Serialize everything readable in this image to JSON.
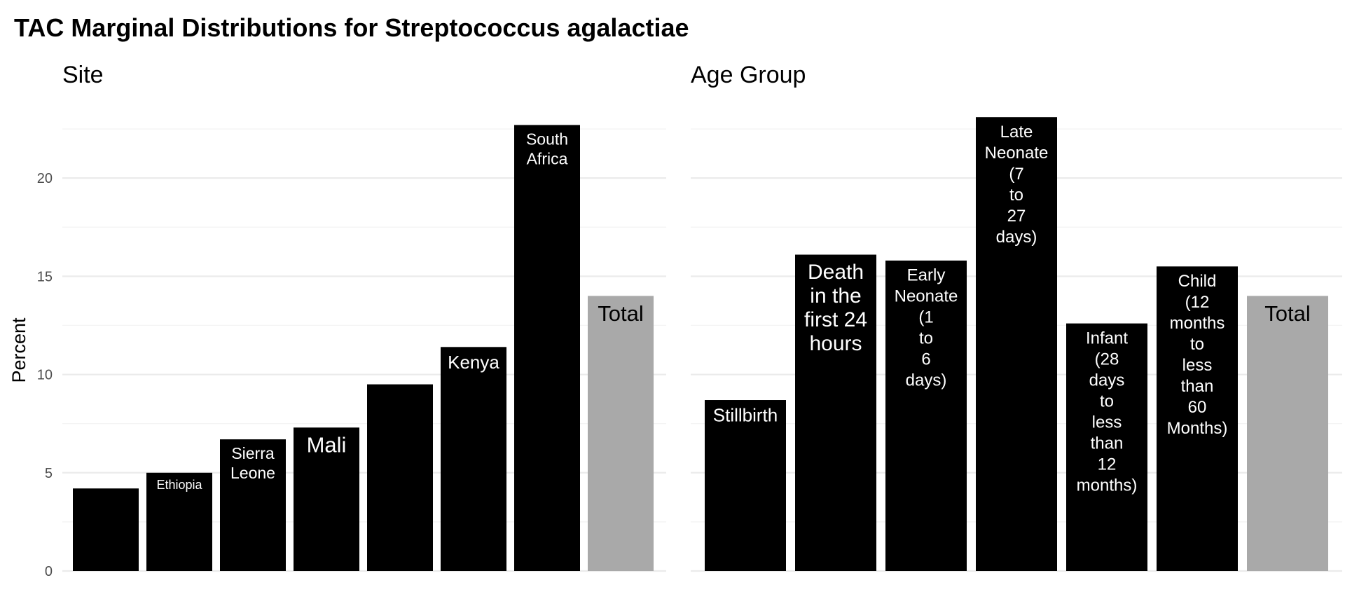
{
  "title": "TAC Marginal Distributions for Streptococcus agalactiae",
  "y_axis_label": "Percent",
  "colors": {
    "bar": "#000000",
    "total_bar": "#a9a9a9",
    "bar_text": "#ffffff",
    "total_text": "#000000"
  },
  "chart_data": [
    {
      "type": "bar",
      "title": "Site",
      "ylabel": "Percent",
      "ylim": [
        0,
        23
      ],
      "yticks": [
        0,
        5,
        10,
        15,
        20
      ],
      "grid": true,
      "categories": [
        "",
        "Ethiopia",
        "Sierra Leone",
        "Mali",
        "",
        "Kenya",
        "South Africa",
        "Total"
      ],
      "values": [
        4.2,
        5.0,
        6.7,
        7.3,
        9.5,
        11.4,
        22.7,
        14.0
      ],
      "bar_labels": [
        [],
        [
          "Ethiopia"
        ],
        [
          "Sierra",
          "Leone"
        ],
        [
          "Mali"
        ],
        [],
        [
          "Kenya"
        ],
        [
          "South",
          "Africa"
        ],
        [
          "Total"
        ]
      ]
    },
    {
      "type": "bar",
      "title": "Age Group",
      "ylabel": "Percent",
      "ylim": [
        0,
        23
      ],
      "yticks": [
        0,
        5,
        10,
        15,
        20
      ],
      "grid": true,
      "categories": [
        "Stillbirth",
        "Death in the first 24 hours",
        "Early Neonate (1 to 6 days)",
        "Late Neonate (7 to 27 days)",
        "Infant (28 days to less than 12 months)",
        "Child (12 months to less than 60 Months)",
        "Total"
      ],
      "values": [
        8.7,
        16.1,
        15.8,
        23.1,
        12.6,
        15.5,
        14.0
      ],
      "bar_labels": [
        [
          "Stillbirth"
        ],
        [
          "Death",
          "in the",
          "first 24",
          "hours"
        ],
        [
          "Early",
          "Neonate",
          "(1",
          "to",
          "6",
          "days)"
        ],
        [
          "Late",
          "Neonate",
          "(7",
          "to",
          "27",
          "days)"
        ],
        [
          "Infant",
          "(28",
          "days",
          "to",
          "less",
          "than",
          "12",
          "months)"
        ],
        [
          "Child",
          "(12",
          "months",
          "to",
          "less",
          "than",
          "60",
          "Months)"
        ],
        [
          "Total"
        ]
      ]
    }
  ]
}
